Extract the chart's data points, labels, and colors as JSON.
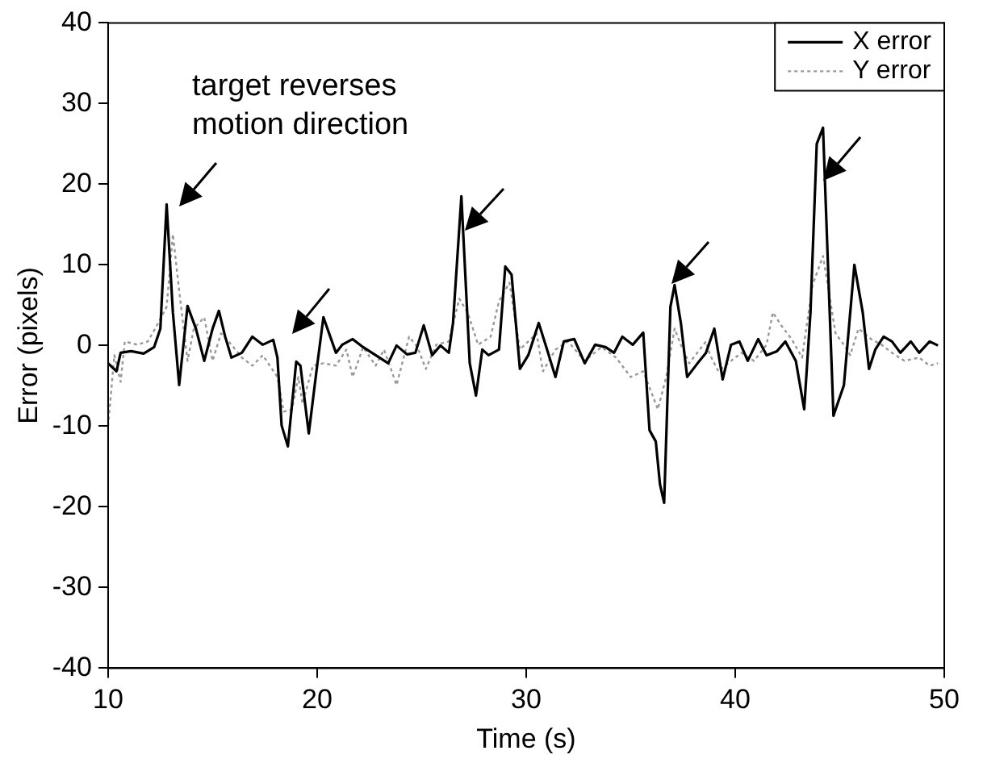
{
  "chart_data": {
    "type": "line",
    "xlabel": "Time (s)",
    "ylabel": "Error (pixels)",
    "xlim": [
      10,
      50
    ],
    "xticks": [
      10,
      20,
      30,
      40,
      50
    ],
    "ylim": [
      -40,
      40
    ],
    "yticks": [
      -40,
      -30,
      -20,
      -10,
      0,
      10,
      20,
      30,
      40
    ],
    "grid": false,
    "legend": "top right",
    "marker": "none",
    "annotations": [
      "target reverses motion direction"
    ],
    "series": [
      {
        "name": "X error",
        "color": "#000000",
        "line_style": "solid",
        "x": [
          10,
          10.4,
          10.6,
          11.1,
          11.7,
          12.2,
          12.5,
          12.8,
          13.1,
          13.4,
          13.8,
          14.2,
          14.6,
          15.0,
          15.3,
          15.6,
          15.9,
          16.4,
          16.9,
          17.4,
          17.9,
          18.1,
          18.3,
          18.6,
          19.0,
          19.2,
          19.6,
          20.0,
          20.3,
          20.9,
          21.2,
          21.7,
          22.2,
          22.8,
          23.4,
          23.8,
          24.3,
          24.7,
          25.1,
          25.5,
          25.9,
          26.3,
          26.5,
          26.9,
          27.3,
          27.6,
          27.9,
          28.2,
          28.7,
          29.0,
          29.3,
          29.7,
          30.1,
          30.6,
          31.0,
          31.4,
          31.8,
          32.3,
          32.8,
          33.3,
          33.8,
          34.2,
          34.6,
          35.1,
          35.6,
          35.9,
          36.2,
          36.4,
          36.6,
          36.9,
          37.1,
          37.4,
          37.7,
          38.2,
          38.6,
          39.0,
          39.4,
          39.8,
          40.2,
          40.6,
          41.1,
          41.5,
          42.0,
          42.4,
          42.9,
          43.3,
          43.6,
          43.9,
          44.2,
          44.5,
          44.7,
          45.2,
          45.7,
          46.1,
          46.4,
          46.7,
          47.1,
          47.5,
          47.9,
          48.4,
          48.8,
          49.3,
          49.7
        ],
        "values": [
          -2.2,
          -3.2,
          -0.9,
          -0.7,
          -1,
          -0.2,
          2.1,
          17.5,
          4.1,
          -4.9,
          4.9,
          2.1,
          -1.9,
          2.1,
          4.3,
          1.1,
          -1.5,
          -0.9,
          1.1,
          0.1,
          0.7,
          -1.5,
          -9.9,
          -12.5,
          -2,
          -2.5,
          -10.9,
          -2.5,
          3.5,
          -0.9,
          0.1,
          0.8,
          -0.2,
          -1.2,
          -2.2,
          0,
          -1.1,
          -0.9,
          2.5,
          -1.2,
          0,
          -0.9,
          2.8,
          18.5,
          -2.2,
          -6.2,
          -0.5,
          -1.2,
          -0.5,
          9.8,
          8.8,
          -2.9,
          -1.2,
          2.8,
          -0.5,
          -3.9,
          0.5,
          0.8,
          -2.2,
          0.1,
          -0.2,
          -0.9,
          1.1,
          0.1,
          1.6,
          -10.5,
          -11.9,
          -17.2,
          -19.5,
          4.8,
          7.5,
          2.8,
          -3.9,
          -2.2,
          -0.9,
          2.1,
          -4.2,
          0.1,
          0.5,
          -1.9,
          0.8,
          -1.2,
          -0.7,
          0.5,
          -1.9,
          -7.9,
          4.1,
          25,
          27,
          5.5,
          -8.7,
          -4.9,
          10,
          4.1,
          -2.9,
          -0.5,
          1.1,
          0.5,
          -0.9,
          0.5,
          -0.9,
          0.5,
          0
        ]
      },
      {
        "name": "Y error",
        "color": "#999999",
        "line_style": "dotted",
        "x": [
          10,
          10.3,
          10.6,
          10.8,
          11.4,
          11.9,
          12.4,
          12.8,
          13.1,
          13.4,
          13.8,
          14.1,
          14.6,
          15.0,
          15.4,
          15.9,
          16.4,
          16.9,
          17.4,
          18.1,
          18.4,
          18.8,
          19.1,
          19.3,
          19.8,
          20.3,
          20.9,
          21.4,
          21.7,
          22.2,
          22.8,
          23.2,
          23.8,
          24.4,
          24.8,
          25.2,
          25.7,
          26.3,
          26.8,
          27.2,
          27.7,
          28.3,
          28.7,
          29.2,
          29.7,
          30.5,
          30.8,
          31.4,
          32.0,
          32.8,
          33.6,
          34.3,
          35.0,
          35.6,
          36.3,
          36.7,
          37.1,
          37.4,
          37.8,
          38.6,
          38.8,
          39.2,
          39.8,
          40.3,
          40.9,
          41.5,
          41.8,
          42.2,
          42.7,
          43.2,
          43.7,
          44.2,
          44.8,
          45.2,
          45.5,
          45.9,
          46.5,
          47.0,
          47.5,
          48.1,
          48.8,
          49.3,
          49.7
        ],
        "values": [
          -10,
          -1.2,
          -4.5,
          0.5,
          0.1,
          0.5,
          2.8,
          4.8,
          13.8,
          6.8,
          -1.9,
          2.1,
          3.5,
          -1.9,
          1.5,
          0.1,
          -1.5,
          -2.5,
          -1.2,
          -3.9,
          -8.2,
          -7.9,
          -3.9,
          -7.2,
          -2.5,
          -2.2,
          -2.5,
          -0.5,
          -3.9,
          -0.2,
          -2.5,
          -0.5,
          -4.9,
          1.1,
          -0.2,
          -2.9,
          0.1,
          0.5,
          5.8,
          4.1,
          0.1,
          1.1,
          5.5,
          7.8,
          -0.5,
          1.5,
          -3.2,
          -0.5,
          0.5,
          -1.9,
          -0.2,
          -1.5,
          -3.9,
          -3.2,
          -7.9,
          -3.9,
          2.1,
          0.1,
          -2.2,
          0.5,
          -1.2,
          -3.2,
          -1.9,
          -0.9,
          -1.9,
          0.1,
          4.1,
          2.5,
          0.8,
          -1.5,
          7.5,
          11.1,
          1.5,
          0.1,
          -1.2,
          2.1,
          0.8,
          0.1,
          -0.9,
          -1.9,
          -1.5,
          -2.5,
          -2.2
        ]
      }
    ]
  }
}
